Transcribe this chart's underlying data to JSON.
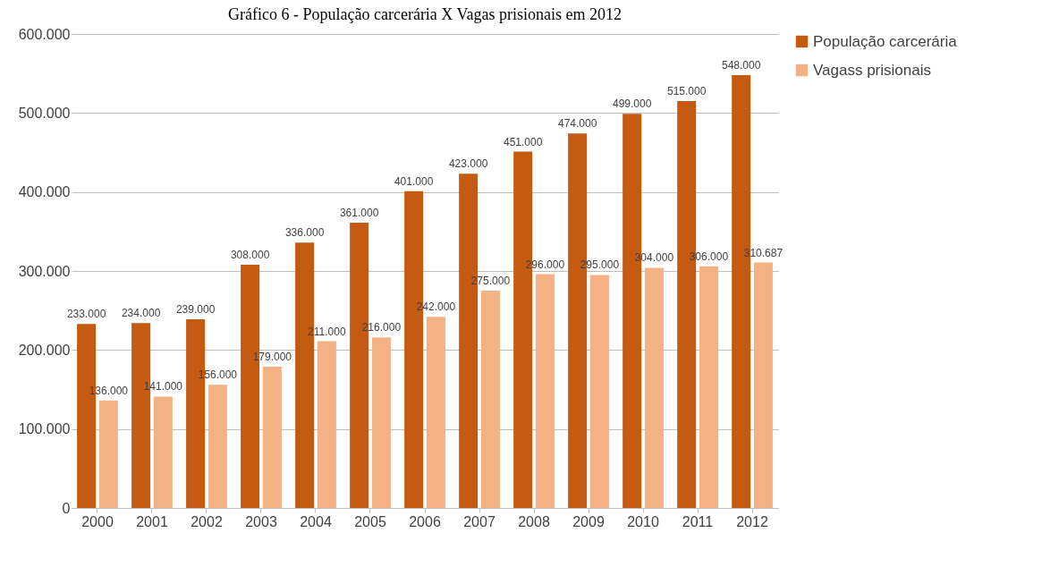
{
  "chart_data": {
    "type": "bar",
    "title": "Gráfico 6 - População carcerária X Vagas prisionais em 2012",
    "categories": [
      "2000",
      "2001",
      "2002",
      "2003",
      "2004",
      "2005",
      "2006",
      "2007",
      "2008",
      "2009",
      "2010",
      "2011",
      "2012"
    ],
    "series": [
      {
        "name": "População carcerária",
        "color": "#c55a11",
        "values": [
          233000,
          234000,
          239000,
          308000,
          336000,
          361000,
          401000,
          423000,
          451000,
          474000,
          499000,
          515000,
          548000
        ],
        "value_labels": [
          "233.000",
          "234.000",
          "239.000",
          "308.000",
          "336.000",
          "361.000",
          "401.000",
          "423.000",
          "451.000",
          "474.000",
          "499.000",
          "515.000",
          "548.000"
        ]
      },
      {
        "name": "Vagass prisionais",
        "color": "#f4b183",
        "values": [
          136000,
          141000,
          156000,
          179000,
          211000,
          216000,
          242000,
          275000,
          296000,
          295000,
          304000,
          306000,
          310687
        ],
        "value_labels": [
          "136.000",
          "141.000",
          "156.000",
          "179.000",
          "211.000",
          "216.000",
          "242.000",
          "275.000",
          "296.000",
          "295.000",
          "304.000",
          "306.000",
          "310.687"
        ]
      }
    ],
    "ylim": [
      0,
      600000
    ],
    "yticks": [
      {
        "value": 0,
        "label": "0"
      },
      {
        "value": 100000,
        "label": "100.000"
      },
      {
        "value": 200000,
        "label": "200.000"
      },
      {
        "value": 300000,
        "label": "300.000"
      },
      {
        "value": 400000,
        "label": "400.000"
      },
      {
        "value": 500000,
        "label": "500.000"
      },
      {
        "value": 600000,
        "label": "600.000"
      }
    ],
    "grid": "y",
    "legend": "right"
  }
}
